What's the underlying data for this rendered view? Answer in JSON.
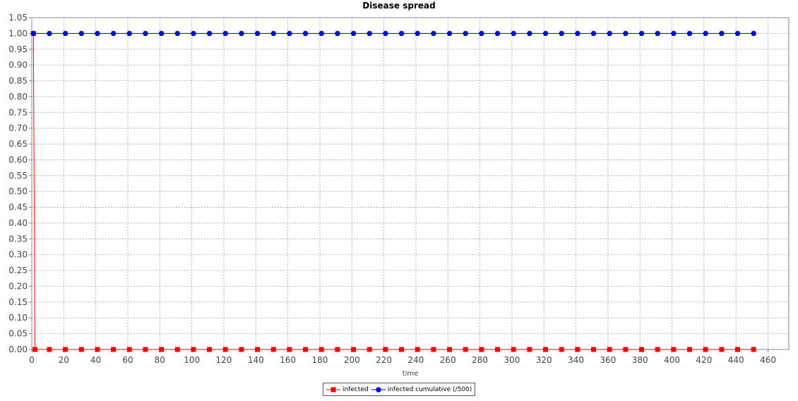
{
  "chart_data": {
    "type": "line",
    "title": "Disease spread",
    "xlabel": "time",
    "ylabel": "",
    "xlim": [
      0,
      473
    ],
    "ylim": [
      0,
      1.05
    ],
    "xticks": [
      "0",
      "20",
      "40",
      "60",
      "80",
      "100",
      "120",
      "140",
      "160",
      "180",
      "200",
      "220",
      "240",
      "260",
      "280",
      "300",
      "320",
      "340",
      "360",
      "380",
      "400",
      "420",
      "440",
      "460"
    ],
    "yticks": [
      "0.00",
      "0.05",
      "0.10",
      "0.15",
      "0.20",
      "0.25",
      "0.30",
      "0.35",
      "0.40",
      "0.45",
      "0.50",
      "0.55",
      "0.60",
      "0.65",
      "0.70",
      "0.75",
      "0.80",
      "0.85",
      "0.90",
      "0.95",
      "1.00",
      "1.05"
    ],
    "grid": true,
    "legend_position": "bottom-center",
    "series": [
      {
        "name": "infected",
        "color": "#ff0000",
        "marker": "square",
        "x": [
          1,
          2,
          11,
          21,
          31,
          41,
          51,
          61,
          71,
          81,
          91,
          101,
          111,
          121,
          131,
          141,
          151,
          161,
          171,
          181,
          191,
          201,
          211,
          221,
          231,
          241,
          251,
          261,
          271,
          281,
          291,
          301,
          311,
          321,
          331,
          341,
          351,
          361,
          371,
          381,
          391,
          401,
          411,
          421,
          431,
          441,
          451
        ],
        "values": [
          1,
          0,
          0,
          0,
          0,
          0,
          0,
          0,
          0,
          0,
          0,
          0,
          0,
          0,
          0,
          0,
          0,
          0,
          0,
          0,
          0,
          0,
          0,
          0,
          0,
          0,
          0,
          0,
          0,
          0,
          0,
          0,
          0,
          0,
          0,
          0,
          0,
          0,
          0,
          0,
          0,
          0,
          0,
          0,
          0,
          0,
          0
        ]
      },
      {
        "name": "infected cumulative (/500)",
        "color": "#0000ff",
        "marker": "circle",
        "x": [
          1,
          11,
          21,
          31,
          41,
          51,
          61,
          71,
          81,
          91,
          101,
          111,
          121,
          131,
          141,
          151,
          161,
          171,
          181,
          191,
          201,
          211,
          221,
          231,
          241,
          251,
          261,
          271,
          281,
          291,
          301,
          311,
          321,
          331,
          341,
          351,
          361,
          371,
          381,
          391,
          401,
          411,
          421,
          431,
          441,
          451
        ],
        "values": [
          1,
          1,
          1,
          1,
          1,
          1,
          1,
          1,
          1,
          1,
          1,
          1,
          1,
          1,
          1,
          1,
          1,
          1,
          1,
          1,
          1,
          1,
          1,
          1,
          1,
          1,
          1,
          1,
          1,
          1,
          1,
          1,
          1,
          1,
          1,
          1,
          1,
          1,
          1,
          1,
          1,
          1,
          1,
          1,
          1,
          1
        ]
      }
    ]
  }
}
